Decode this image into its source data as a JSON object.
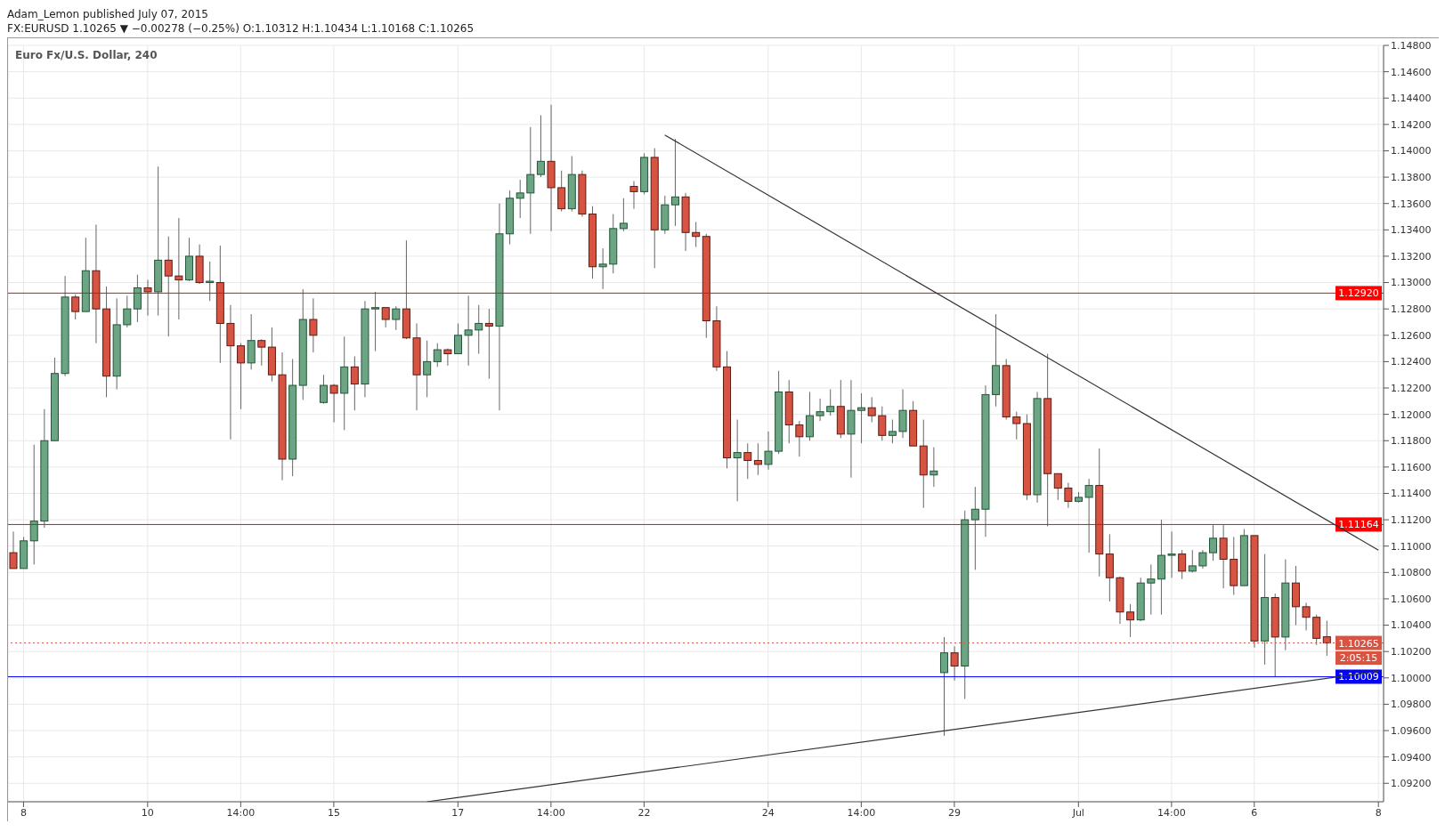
{
  "chart_data": {
    "type": "candlestick",
    "title": "Adam_Lemon published July 07, 2015",
    "subtitle": "FX:EURUSD 1.10265 ▼ −0.00278 (−0.25%) O:1.10312 H:1.10434 L:1.10168 C:1.10265",
    "annotations": [
      "Euro Fx/U.S. Dollar, 240",
      "2:05:15"
    ],
    "categories": [
      null,
      "8",
      null,
      null,
      null,
      null,
      null,
      null,
      null,
      null,
      null,
      null,
      null,
      "10",
      null,
      null,
      null,
      null,
      null,
      null,
      null,
      null,
      "14:00",
      null,
      null,
      null,
      null,
      null,
      null,
      null,
      null,
      "15",
      null,
      null,
      null,
      null,
      null,
      null,
      null,
      null,
      null,
      null,
      null,
      "17",
      null,
      null,
      null,
      null,
      null,
      null,
      null,
      null,
      "14:00",
      null,
      null,
      null,
      null,
      null,
      null,
      null,
      null,
      "22",
      null,
      null,
      null,
      null,
      null,
      null,
      null,
      null,
      null,
      null,
      null,
      "24",
      null,
      null,
      null,
      null,
      null,
      null,
      null,
      null,
      "14:00",
      null,
      null,
      null,
      null,
      null,
      null,
      null,
      null,
      "29",
      null,
      null,
      null,
      null,
      null,
      null,
      null,
      null,
      null,
      null,
      null,
      "Jul",
      null,
      null,
      null,
      null,
      null,
      null,
      null,
      null,
      "14:00",
      null,
      null,
      null,
      null,
      null,
      null,
      null,
      "6",
      null,
      null,
      null,
      null,
      null,
      null,
      null,
      null,
      null,
      null,
      null,
      "8"
    ],
    "colors": [
      "#d75442",
      "#6ba583",
      "#6ba583",
      "#6ba583",
      "#6ba583",
      "#6ba583",
      "#d75442",
      "#6ba583",
      "#d75442",
      "#d75442",
      "#6ba583",
      "#6ba583",
      "#6ba583",
      "#d75442",
      "#6ba583",
      "#d75442",
      "#d75442",
      "#6ba583",
      "#d75442",
      "#6ba583",
      "#d75442",
      "#d75442",
      "#d75442",
      "#6ba583",
      "#d75442",
      "#d75442",
      "#d75442",
      "#6ba583",
      "#6ba583",
      "#d75442",
      "#6ba583",
      "#d75442",
      "#6ba583",
      "#d75442",
      "#6ba583",
      "#6ba583",
      "#d75442",
      "#6ba583",
      "#d75442",
      "#d75442",
      "#6ba583",
      "#6ba583",
      "#d75442",
      "#6ba583",
      "#6ba583",
      "#6ba583",
      "#d75442",
      "#6ba583",
      "#6ba583",
      "#6ba583",
      "#6ba583",
      "#6ba583",
      "#d75442",
      "#d75442",
      "#6ba583",
      "#d75442",
      "#d75442",
      "#6ba583",
      "#6ba583",
      "#6ba583",
      "#d75442",
      "#6ba583",
      "#d75442",
      "#6ba583",
      "#6ba583",
      "#d75442",
      "#d75442",
      "#d75442",
      "#d75442",
      "#d75442",
      "#6ba583",
      "#d75442",
      "#d75442",
      "#6ba583",
      "#6ba583",
      "#d75442",
      "#d75442",
      "#6ba583",
      "#6ba583",
      "#6ba583",
      "#d75442",
      "#6ba583",
      "#6ba583",
      "#d75442",
      "#d75442",
      "#6ba583",
      "#6ba583",
      "#d75442",
      "#d75442",
      "#6ba583",
      "#6ba583",
      "#d75442",
      "#6ba583",
      "#6ba583",
      "#6ba583",
      "#6ba583",
      "#d75442",
      "#d75442",
      "#d75442",
      "#6ba583",
      "#d75442",
      "#d75442",
      "#d75442",
      "#6ba583",
      "#6ba583",
      "#d75442",
      "#d75442",
      "#d75442",
      "#d75442",
      "#6ba583",
      "#6ba583",
      "#6ba583",
      "#6ba583",
      "#d75442",
      "#6ba583",
      "#6ba583",
      "#6ba583",
      "#d75442",
      "#d75442",
      "#6ba583",
      "#d75442",
      "#6ba583",
      "#d75442",
      "#6ba583",
      "#d75442",
      "#d75442",
      "#d75442",
      "#d75442",
      null,
      null,
      null,
      null,
      null
    ],
    "ohlc": [
      [
        1.1095,
        1.1111,
        1.1083,
        1.1083
      ],
      [
        1.1083,
        1.1107,
        1.1083,
        1.1104
      ],
      [
        1.1104,
        1.1177,
        1.1086,
        1.1119
      ],
      [
        1.1119,
        1.1204,
        1.1114,
        1.118
      ],
      [
        1.118,
        1.1243,
        1.118,
        1.1231
      ],
      [
        1.1231,
        1.1305,
        1.1229,
        1.1289
      ],
      [
        1.1289,
        1.1291,
        1.1272,
        1.1278
      ],
      [
        1.1278,
        1.1334,
        1.1278,
        1.1309
      ],
      [
        1.1309,
        1.1344,
        1.1254,
        1.128
      ],
      [
        1.128,
        1.1297,
        1.1213,
        1.1229
      ],
      [
        1.1229,
        1.1288,
        1.1219,
        1.1268
      ],
      [
        1.1268,
        1.129,
        1.1266,
        1.128
      ],
      [
        1.128,
        1.1306,
        1.127,
        1.1296
      ],
      [
        1.1296,
        1.1302,
        1.1275,
        1.1293
      ],
      [
        1.1293,
        1.1388,
        1.1275,
        1.1317
      ],
      [
        1.1317,
        1.1335,
        1.1259,
        1.1305
      ],
      [
        1.1305,
        1.1349,
        1.1272,
        1.1302
      ],
      [
        1.1302,
        1.1334,
        1.1301,
        1.132
      ],
      [
        1.132,
        1.1329,
        1.1299,
        1.13
      ],
      [
        1.13,
        1.1316,
        1.1286,
        1.1301
      ],
      [
        1.13,
        1.1328,
        1.1239,
        1.1269
      ],
      [
        1.1269,
        1.1283,
        1.1181,
        1.1252
      ],
      [
        1.1252,
        1.1254,
        1.1204,
        1.1239
      ],
      [
        1.1239,
        1.1276,
        1.1234,
        1.1256
      ],
      [
        1.1256,
        1.1257,
        1.1237,
        1.1251
      ],
      [
        1.1251,
        1.1266,
        1.1225,
        1.123
      ],
      [
        1.123,
        1.1247,
        1.115,
        1.1166
      ],
      [
        1.1166,
        1.1242,
        1.1153,
        1.1222
      ],
      [
        1.1222,
        1.1295,
        1.1211,
        1.1272
      ],
      [
        1.1272,
        1.1288,
        1.1247,
        1.126
      ],
      [
        1.1209,
        1.123,
        1.1208,
        1.1222
      ],
      [
        1.1222,
        1.1223,
        1.1194,
        1.1216
      ],
      [
        1.1216,
        1.1259,
        1.1188,
        1.1236
      ],
      [
        1.1236,
        1.1244,
        1.1203,
        1.1223
      ],
      [
        1.1223,
        1.1286,
        1.1213,
        1.128
      ],
      [
        1.128,
        1.1293,
        1.1248,
        1.1281
      ],
      [
        1.1281,
        1.1281,
        1.1266,
        1.1272
      ],
      [
        1.1272,
        1.1282,
        1.1264,
        1.128
      ],
      [
        1.128,
        1.1332,
        1.1257,
        1.1258
      ],
      [
        1.1258,
        1.1269,
        1.1203,
        1.123
      ],
      [
        1.123,
        1.1256,
        1.1213,
        1.124
      ],
      [
        1.124,
        1.1254,
        1.1236,
        1.1249
      ],
      [
        1.1249,
        1.125,
        1.1237,
        1.1246
      ],
      [
        1.1246,
        1.1269,
        1.1246,
        1.126
      ],
      [
        1.126,
        1.129,
        1.1237,
        1.1264
      ],
      [
        1.1264,
        1.1283,
        1.1246,
        1.1269
      ],
      [
        1.1269,
        1.128,
        1.1227,
        1.1267
      ],
      [
        1.1267,
        1.136,
        1.1203,
        1.1337
      ],
      [
        1.1337,
        1.137,
        1.1329,
        1.1364
      ],
      [
        1.1364,
        1.1378,
        1.1349,
        1.1368
      ],
      [
        1.1368,
        1.1418,
        1.1337,
        1.1382
      ],
      [
        1.1382,
        1.1427,
        1.138,
        1.1392
      ],
      [
        1.1392,
        1.1435,
        1.1339,
        1.1372
      ],
      [
        1.1372,
        1.1385,
        1.1354,
        1.1356
      ],
      [
        1.1356,
        1.1396,
        1.1354,
        1.1382
      ],
      [
        1.1382,
        1.1385,
        1.135,
        1.1352
      ],
      [
        1.1352,
        1.1358,
        1.1303,
        1.1312
      ],
      [
        1.1312,
        1.1326,
        1.1295,
        1.1314
      ],
      [
        1.1314,
        1.1352,
        1.1307,
        1.1341
      ],
      [
        1.1341,
        1.1364,
        1.1339,
        1.1345
      ],
      [
        1.1373,
        1.1377,
        1.1356,
        1.1369
      ],
      [
        1.1369,
        1.1398,
        1.1367,
        1.1395
      ],
      [
        1.1395,
        1.1402,
        1.1311,
        1.134
      ],
      [
        1.134,
        1.1366,
        1.1337,
        1.1359
      ],
      [
        1.1359,
        1.1409,
        1.1343,
        1.1365
      ],
      [
        1.1365,
        1.1368,
        1.1324,
        1.1338
      ],
      [
        1.1338,
        1.1346,
        1.1327,
        1.1335
      ],
      [
        1.1335,
        1.1337,
        1.1258,
        1.1271
      ],
      [
        1.1271,
        1.1282,
        1.1233,
        1.1236
      ],
      [
        1.1236,
        1.1248,
        1.1159,
        1.1167
      ],
      [
        1.1167,
        1.1196,
        1.1134,
        1.1171
      ],
      [
        1.1171,
        1.1178,
        1.1151,
        1.1165
      ],
      [
        1.1165,
        1.1178,
        1.1154,
        1.1162
      ],
      [
        1.1162,
        1.1187,
        1.1158,
        1.1172
      ],
      [
        1.1172,
        1.1233,
        1.117,
        1.1217
      ],
      [
        1.1217,
        1.1226,
        1.1178,
        1.1192
      ],
      [
        1.1192,
        1.1195,
        1.1168,
        1.1183
      ],
      [
        1.1183,
        1.1217,
        1.118,
        1.1199
      ],
      [
        1.1199,
        1.1212,
        1.1195,
        1.1202
      ],
      [
        1.1202,
        1.1219,
        1.1199,
        1.1206
      ],
      [
        1.1206,
        1.1226,
        1.1182,
        1.1185
      ],
      [
        1.1185,
        1.1226,
        1.1152,
        1.1203
      ],
      [
        1.1203,
        1.1216,
        1.1178,
        1.1205
      ],
      [
        1.1205,
        1.1213,
        1.1194,
        1.1199
      ],
      [
        1.1199,
        1.1206,
        1.118,
        1.1184
      ],
      [
        1.1184,
        1.1196,
        1.1178,
        1.1187
      ],
      [
        1.1187,
        1.1219,
        1.1182,
        1.1203
      ],
      [
        1.1203,
        1.121,
        1.1176,
        1.1176
      ],
      [
        1.1176,
        1.1196,
        1.1129,
        1.1154
      ],
      [
        1.1154,
        1.1175,
        1.1145,
        1.1157
      ],
      [
        1.1004,
        1.1031,
        1.0956,
        1.1019
      ],
      [
        1.1019,
        1.1024,
        1.0998,
        1.1009
      ],
      [
        1.1009,
        1.1127,
        1.0984,
        1.112
      ],
      [
        1.112,
        1.1145,
        1.1082,
        1.1128
      ],
      [
        1.1128,
        1.1222,
        1.1107,
        1.1215
      ],
      [
        1.1215,
        1.1276,
        1.1206,
        1.1237
      ],
      [
        1.1237,
        1.1242,
        1.1196,
        1.1198
      ],
      [
        1.1198,
        1.1202,
        1.1181,
        1.1193
      ],
      [
        1.1193,
        1.12,
        1.1135,
        1.1139
      ],
      [
        1.1139,
        1.1217,
        1.1133,
        1.1212
      ],
      [
        1.1212,
        1.1246,
        1.1115,
        1.1155
      ],
      [
        1.1155,
        1.1155,
        1.1135,
        1.1144
      ],
      [
        1.1144,
        1.1148,
        1.1129,
        1.1134
      ],
      [
        1.1134,
        1.1141,
        1.1133,
        1.1137
      ],
      [
        1.1137,
        1.1151,
        1.1095,
        1.1146
      ],
      [
        1.1146,
        1.1174,
        1.1077,
        1.1094
      ],
      [
        1.1094,
        1.1109,
        1.1058,
        1.1076
      ],
      [
        1.1076,
        1.1077,
        1.1041,
        1.105
      ],
      [
        1.105,
        1.1056,
        1.1031,
        1.1044
      ],
      [
        1.1044,
        1.1076,
        1.1043,
        1.1072
      ],
      [
        1.1072,
        1.1086,
        1.1048,
        1.1075
      ],
      [
        1.1075,
        1.112,
        1.1048,
        1.1093
      ],
      [
        1.1093,
        1.1111,
        1.1076,
        1.1094
      ],
      [
        1.1094,
        1.1097,
        1.1075,
        1.1081
      ],
      [
        1.1081,
        1.1097,
        1.108,
        1.1085
      ],
      [
        1.1085,
        1.1097,
        1.1083,
        1.1095
      ],
      [
        1.1095,
        1.1116,
        1.1089,
        1.1106
      ],
      [
        1.1106,
        1.1116,
        1.1068,
        1.109
      ],
      [
        1.109,
        1.1107,
        1.1063,
        1.107
      ],
      [
        1.107,
        1.1113,
        1.107,
        1.1108
      ],
      [
        1.1108,
        1.1108,
        1.1023,
        1.1028
      ],
      [
        1.1028,
        1.1094,
        1.101,
        1.1061
      ],
      [
        1.1061,
        1.1064,
        1.1001,
        1.1031
      ],
      [
        1.1031,
        1.109,
        1.1021,
        1.1072
      ],
      [
        1.1072,
        1.1085,
        1.104,
        1.1054
      ],
      [
        1.1054,
        1.1057,
        1.1036,
        1.1046
      ],
      [
        1.1046,
        1.1048,
        1.1025,
        1.103
      ],
      [
        1.10312,
        1.10434,
        1.10168,
        1.10265
      ],
      null,
      null,
      null,
      null,
      null
    ],
    "series": [
      {
        "type": "line",
        "color": "#333333",
        "values": [
          null,
          null,
          null,
          null,
          null,
          null,
          null,
          null,
          null,
          null,
          null,
          null,
          null,
          null,
          null,
          null,
          null,
          null,
          null,
          null,
          null,
          null,
          null,
          null,
          null,
          null,
          null,
          null,
          null,
          null,
          null,
          null,
          null,
          null,
          null,
          null,
          null,
          null,
          null,
          null,
          null,
          null,
          null,
          null,
          null,
          null,
          null,
          null,
          null,
          null,
          null,
          null,
          null,
          null,
          null,
          null,
          null,
          null,
          null,
          null,
          null,
          null,
          null,
          1.1412,
          null,
          null,
          null,
          null,
          null,
          null,
          null,
          null,
          null,
          null,
          null,
          null,
          null,
          null,
          null,
          null,
          null,
          null,
          null,
          null,
          null,
          null,
          null,
          null,
          null,
          null,
          null,
          null,
          null,
          null,
          null,
          null,
          null,
          null,
          null,
          null,
          null,
          null,
          null,
          null,
          null,
          null,
          null,
          null,
          null,
          null,
          null,
          null,
          null,
          null,
          null,
          null,
          null,
          null,
          null,
          null,
          null,
          null,
          null,
          null,
          null,
          null,
          null,
          null,
          null,
          null,
          null,
          null,
          1.1097
        ]
      },
      {
        "type": "line",
        "color": "#333333",
        "values": [
          null,
          null,
          null,
          null,
          null,
          null,
          null,
          null,
          null,
          null,
          null,
          null,
          null,
          null,
          null,
          null,
          null,
          null,
          null,
          null,
          null,
          null,
          null,
          null,
          null,
          null,
          null,
          null,
          null,
          null,
          null,
          null,
          null,
          null,
          null,
          null,
          null,
          null,
          null,
          null,
          1.0906,
          null,
          null,
          null,
          null,
          null,
          null,
          null,
          null,
          null,
          null,
          null,
          null,
          null,
          null,
          null,
          null,
          null,
          null,
          null,
          null,
          null,
          null,
          null,
          null,
          null,
          null,
          null,
          null,
          null,
          null,
          null,
          null,
          null,
          null,
          null,
          null,
          null,
          null,
          null,
          null,
          null,
          null,
          null,
          null,
          null,
          null,
          null,
          null,
          null,
          null,
          null,
          null,
          null,
          null,
          null,
          null,
          null,
          null,
          null,
          null,
          null,
          null,
          null,
          null,
          null,
          null,
          null,
          null,
          null,
          null,
          null,
          null,
          null,
          null,
          null,
          null,
          null,
          null,
          null,
          null,
          null,
          null,
          null,
          null,
          null,
          null,
          null,
          null,
          null,
          null,
          null,
          1.1005
        ]
      }
    ],
    "ylim": [
      1.0906,
      1.148
    ],
    "yticks": [
      {
        "value": 1.092,
        "label": "1.09200"
      },
      {
        "value": 1.094,
        "label": "1.09400"
      },
      {
        "value": 1.096,
        "label": "1.09600"
      },
      {
        "value": 1.098,
        "label": "1.09800"
      },
      {
        "value": 1.1,
        "label": "1.10000"
      },
      {
        "value": 1.102,
        "label": "1.10200"
      },
      {
        "value": 1.104,
        "label": "1.10400"
      },
      {
        "value": 1.106,
        "label": "1.10600"
      },
      {
        "value": 1.108,
        "label": "1.10800"
      },
      {
        "value": 1.11,
        "label": "1.11000"
      },
      {
        "value": 1.112,
        "label": "1.11200"
      },
      {
        "value": 1.114,
        "label": "1.11400"
      },
      {
        "value": 1.116,
        "label": "1.11600"
      },
      {
        "value": 1.118,
        "label": "1.11800"
      },
      {
        "value": 1.12,
        "label": "1.12000"
      },
      {
        "value": 1.122,
        "label": "1.12200"
      },
      {
        "value": 1.124,
        "label": "1.12400"
      },
      {
        "value": 1.126,
        "label": "1.12600"
      },
      {
        "value": 1.128,
        "label": "1.12800"
      },
      {
        "value": 1.13,
        "label": "1.13000"
      },
      {
        "value": 1.132,
        "label": "1.13200"
      },
      {
        "value": 1.134,
        "label": "1.13400"
      },
      {
        "value": 1.136,
        "label": "1.13600"
      },
      {
        "value": 1.138,
        "label": "1.13800"
      },
      {
        "value": 1.14,
        "label": "1.14000"
      },
      {
        "value": 1.142,
        "label": "1.14200"
      },
      {
        "value": 1.144,
        "label": "1.14400"
      },
      {
        "value": 1.146,
        "label": "1.14600"
      },
      {
        "value": 1.148,
        "label": "1.14800"
      }
    ],
    "ref_lines": [
      {
        "axis": "y",
        "value": 1.1292,
        "label": "1.12920",
        "color": "#ff0000",
        "line_style": "solid"
      },
      {
        "axis": "y",
        "value": 1.11164,
        "label": "1.11164",
        "color": "#ff0000",
        "line_style": "solid"
      },
      {
        "axis": "y",
        "value": 1.10009,
        "label": "1.10009",
        "color": "#0000ff",
        "line_style": "solid"
      },
      {
        "axis": "y",
        "value": 1.10265,
        "label": "1.10265",
        "color": "#d75442",
        "line_style": "dotted"
      }
    ],
    "grid": true
  }
}
